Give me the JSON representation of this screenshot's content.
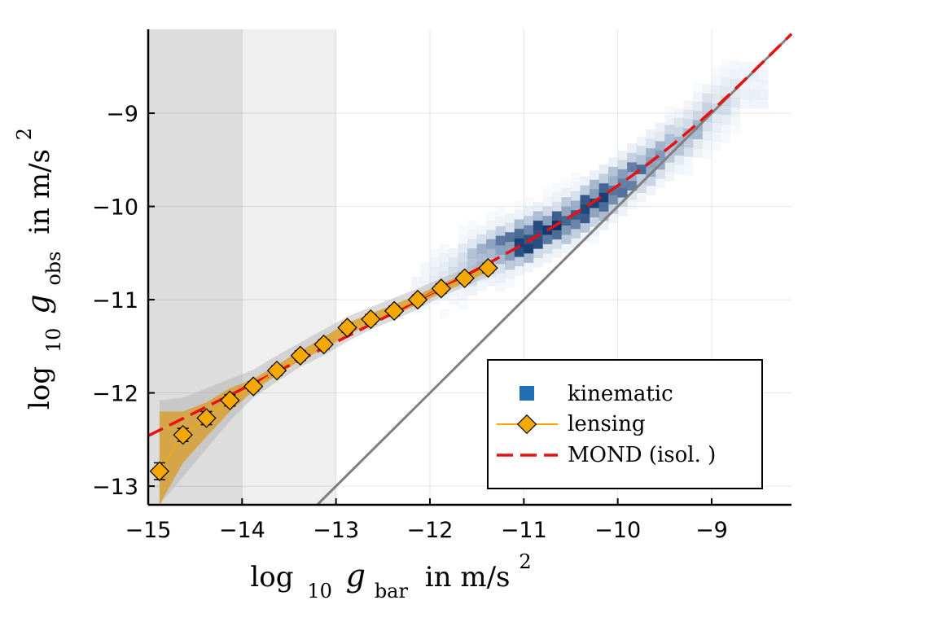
{
  "chart_data": {
    "type": "scatter",
    "xlabel": "log 10 g bar in m/s 2",
    "ylabel": "log 10 g obs in m/s 2",
    "axis_labels": {
      "x": {
        "prefix": "log",
        "sub_10": "10",
        "var": "g",
        "sub_var": "bar",
        "unit": "in m/s",
        "sup": "2"
      },
      "y": {
        "prefix": "log",
        "sub_10": "10",
        "var": "g",
        "sub_var": "obs",
        "unit": "in m/s",
        "sup": "2"
      }
    },
    "xlim": [
      -15,
      -8.15
    ],
    "ylim": [
      -13.2,
      -8.1
    ],
    "xticks": [
      -15,
      -14,
      -13,
      -12,
      -11,
      -10,
      -9
    ],
    "yticks": [
      -13,
      -12,
      -11,
      -10,
      -9
    ],
    "xtick_labels": [
      "−15",
      "−14",
      "−13",
      "−12",
      "−11",
      "−10",
      "−9"
    ],
    "ytick_labels": [
      "−13",
      "−12",
      "−11",
      "−10",
      "−9"
    ],
    "grid": true,
    "legend_position": "bottom-right",
    "shaded_regions": [
      {
        "x": [
          -15,
          -14
        ],
        "color": "#dddddd"
      },
      {
        "x": [
          -14,
          -13
        ],
        "color": "#efefef"
      }
    ],
    "series": [
      {
        "name": "kinematic",
        "kind": "2d-histogram",
        "color": "#1f6fb4",
        "ridge_x": [
          -12.2,
          -11.8,
          -11.4,
          -11.0,
          -10.6,
          -10.2,
          -9.8,
          -9.4,
          -9.0,
          -8.7
        ],
        "ridge_y": [
          -10.95,
          -10.75,
          -10.55,
          -10.4,
          -10.2,
          -9.95,
          -9.65,
          -9.35,
          -9.0,
          -8.75
        ],
        "density": [
          0.08,
          0.2,
          0.5,
          0.9,
          0.75,
          0.8,
          0.55,
          0.45,
          0.3,
          0.12
        ]
      },
      {
        "name": "lensing",
        "kind": "points-with-errors",
        "color": "#f5a800",
        "x": [
          -14.88,
          -14.63,
          -14.38,
          -14.13,
          -13.88,
          -13.63,
          -13.38,
          -13.13,
          -12.88,
          -12.63,
          -12.38,
          -12.13,
          -11.88,
          -11.63,
          -11.38
        ],
        "y": [
          -12.84,
          -12.45,
          -12.27,
          -12.08,
          -11.93,
          -11.76,
          -11.6,
          -11.48,
          -11.3,
          -11.21,
          -11.12,
          -11.0,
          -10.88,
          -10.77,
          -10.66
        ],
        "yerr": [
          0.09,
          0.07,
          0.07,
          0.06,
          0.05,
          0.05,
          0.05,
          0.05,
          0.05,
          0.05,
          0.05,
          0.05,
          0.05,
          0.05,
          0.05
        ],
        "band_inner_lo": [
          -13.2,
          -12.75,
          -12.47,
          -12.2,
          -11.98,
          -11.81,
          -11.65,
          -11.53,
          -11.38,
          -11.26,
          -11.17,
          -11.05,
          -10.93,
          -10.82,
          -10.7
        ],
        "band_inner_hi": [
          -12.2,
          -12.2,
          -12.1,
          -11.95,
          -11.85,
          -11.7,
          -11.55,
          -11.4,
          -11.25,
          -11.15,
          -11.05,
          -10.95,
          -10.83,
          -10.72,
          -10.6
        ],
        "band_outer_lo": [
          -13.2,
          -12.9,
          -12.6,
          -12.3,
          -12.05,
          -11.88,
          -11.72,
          -11.6,
          -11.45,
          -11.32,
          -11.22,
          -11.1,
          -10.97,
          -10.86,
          -10.75
        ],
        "band_outer_hi": [
          -12.08,
          -12.05,
          -11.95,
          -11.85,
          -11.75,
          -11.6,
          -11.46,
          -11.32,
          -11.18,
          -11.08,
          -10.98,
          -10.88,
          -10.77,
          -10.67,
          -10.55
        ]
      },
      {
        "name": "MOND (isol. )",
        "kind": "dashed-line",
        "color": "#e8110f"
      },
      {
        "kind": "line",
        "color": "#808080",
        "x": [
          -13.2,
          -8.15
        ],
        "y": [
          -13.2,
          -8.15
        ]
      }
    ]
  }
}
